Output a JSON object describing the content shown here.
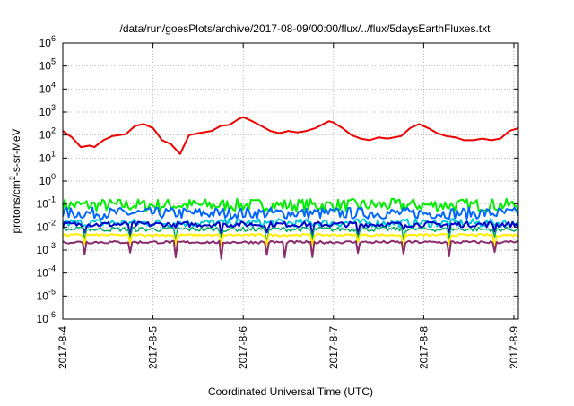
{
  "chart_data": {
    "type": "line",
    "title": "/data/run/goesPlots/archive/2017-08-09/00:00/flux/../flux/5daysEarthFluxes.txt",
    "xlabel": "Coordinated Universal Time (UTC)",
    "ylabel_base": "protons/cm",
    "ylabel_sup": "2",
    "ylabel_rest": "-s-sr-MeV",
    "yscale": "log",
    "ylim": [
      1e-06,
      1000000.0
    ],
    "xlim": [
      0,
      5.05
    ],
    "grid": true,
    "y_tick_base": "10",
    "y_ticks": [
      {
        "exp": "6"
      },
      {
        "exp": "5"
      },
      {
        "exp": "4"
      },
      {
        "exp": "3"
      },
      {
        "exp": "2"
      },
      {
        "exp": "1"
      },
      {
        "exp": "0"
      },
      {
        "exp": "-1"
      },
      {
        "exp": "-2"
      },
      {
        "exp": "-3"
      },
      {
        "exp": "-4"
      },
      {
        "exp": "-5"
      },
      {
        "exp": "-6"
      }
    ],
    "x_ticks": [
      {
        "day": 0,
        "label": "2017-8-4"
      },
      {
        "day": 1,
        "label": "2017-8-5"
      },
      {
        "day": 2,
        "label": "2017-8-6"
      },
      {
        "day": 3,
        "label": "2017-8-7"
      },
      {
        "day": 4,
        "label": "2017-8-8"
      },
      {
        "day": 5,
        "label": "2017-8-9"
      }
    ],
    "series": [
      {
        "color": "#ee0000",
        "width": 2,
        "noise": 0,
        "dips": 0,
        "x": [
          0,
          0.1,
          0.2,
          0.3,
          0.35,
          0.45,
          0.55,
          0.7,
          0.8,
          0.9,
          1.0,
          1.1,
          1.2,
          1.3,
          1.4,
          1.5,
          1.65,
          1.75,
          1.85,
          1.95,
          2.0,
          2.1,
          2.2,
          2.3,
          2.4,
          2.5,
          2.6,
          2.7,
          2.8,
          2.95,
          3.0,
          3.1,
          3.2,
          3.3,
          3.4,
          3.5,
          3.6,
          3.75,
          3.85,
          3.95,
          4.05,
          4.15,
          4.25,
          4.35,
          4.45,
          4.55,
          4.65,
          4.75,
          4.85,
          4.95,
          5.05
        ],
        "y": [
          150,
          80,
          30,
          35,
          30,
          60,
          90,
          110,
          250,
          300,
          200,
          60,
          40,
          15,
          100,
          120,
          150,
          250,
          280,
          500,
          600,
          400,
          250,
          150,
          120,
          150,
          130,
          150,
          200,
          400,
          350,
          200,
          100,
          70,
          60,
          80,
          70,
          90,
          200,
          300,
          200,
          120,
          90,
          80,
          60,
          60,
          70,
          60,
          70,
          150,
          200
        ]
      },
      {
        "color": "#00ee00",
        "width": 2,
        "noise": 0.28,
        "dips": 0,
        "base": 0.09,
        "x": [
          0,
          5.05
        ],
        "y": [
          0.09,
          0.09
        ]
      },
      {
        "color": "#0066ff",
        "width": 2,
        "noise": 0.25,
        "dips": 0,
        "base": 0.04,
        "x": [
          0,
          5.05
        ],
        "y": [
          0.04,
          0.04
        ]
      },
      {
        "color": "#00c8d8",
        "width": 2,
        "noise": 0.18,
        "dips": 0,
        "base": 0.015,
        "x": [
          0,
          5.05
        ],
        "y": [
          0.015,
          0.015
        ]
      },
      {
        "color": "#0000cc",
        "width": 2,
        "noise": 0.12,
        "dips": 0.4,
        "base": 0.013,
        "x": [
          0,
          5.05
        ],
        "y": [
          0.013,
          0.013
        ]
      },
      {
        "color": "#00aa66",
        "width": 1.5,
        "noise": 0.1,
        "dips": 0.5,
        "base": 0.008,
        "x": [
          0,
          5.05
        ],
        "y": [
          0.008,
          0.008
        ]
      },
      {
        "color": "#ffee00",
        "width": 2,
        "noise": 0.05,
        "dips": 0.55,
        "base": 0.0045,
        "x": [
          0,
          5.05
        ],
        "y": [
          0.0045,
          0.0045
        ]
      },
      {
        "color": "#8b2c6c",
        "width": 2,
        "noise": 0.06,
        "dips": 0.7,
        "base": 0.0022,
        "x": [
          0,
          5.05
        ],
        "y": [
          0.0022,
          0.0022
        ]
      }
    ]
  }
}
